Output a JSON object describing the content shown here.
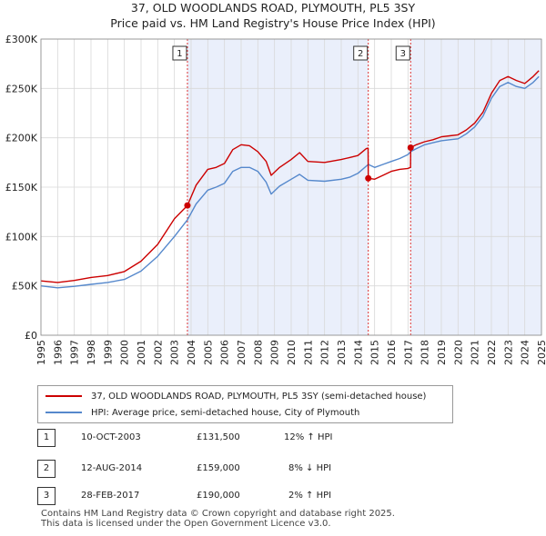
{
  "title_line1": "37, OLD WOODLANDS ROAD, PLYMOUTH, PL5 3SY",
  "title_line2": "Price paid vs. HM Land Registry's House Price Index (HPI)",
  "chart_data": {
    "type": "line",
    "title": "37, OLD WOODLANDS ROAD, PLYMOUTH, PL5 3SY — Price paid vs. HM Land Registry's House Price Index (HPI)",
    "xlim": [
      1995,
      2025
    ],
    "ylim": [
      0,
      300000
    ],
    "y_ticks": [
      0,
      50000,
      100000,
      150000,
      200000,
      250000,
      300000
    ],
    "y_tick_labels": [
      "£0",
      "£50K",
      "£100K",
      "£150K",
      "£200K",
      "£250K",
      "£300K"
    ],
    "x_ticks": [
      1995,
      1996,
      1997,
      1998,
      1999,
      2000,
      2001,
      2002,
      2003,
      2004,
      2005,
      2006,
      2007,
      2008,
      2009,
      2010,
      2011,
      2012,
      2013,
      2014,
      2015,
      2016,
      2017,
      2018,
      2019,
      2020,
      2021,
      2022,
      2023,
      2024,
      2025
    ],
    "x_tick_labels": [
      "1995",
      "1996",
      "1997",
      "1998",
      "1999",
      "2000",
      "2001",
      "2002",
      "2003",
      "2004",
      "2005",
      "2006",
      "2007",
      "2008",
      "2009",
      "2010",
      "2011",
      "2012",
      "2013",
      "2014",
      "2015",
      "2016",
      "2017",
      "2018",
      "2019",
      "2020",
      "2021",
      "2022",
      "2023",
      "2024",
      "2025"
    ],
    "grid": true,
    "series": [
      {
        "name": "37, OLD WOODLANDS ROAD, PLYMOUTH, PL5 3SY (semi-detached house)",
        "color": "#cc0000",
        "points": [
          [
            1995.0,
            55000
          ],
          [
            1996.0,
            53500
          ],
          [
            1997.0,
            55500
          ],
          [
            1998.0,
            58500
          ],
          [
            1999.0,
            60500
          ],
          [
            2000.0,
            64500
          ],
          [
            2001.0,
            75000
          ],
          [
            2002.0,
            92000
          ],
          [
            2003.0,
            118000
          ],
          [
            2003.78,
            131500
          ],
          [
            2004.3,
            152000
          ],
          [
            2005.0,
            168000
          ],
          [
            2005.5,
            170000
          ],
          [
            2006.0,
            174000
          ],
          [
            2006.5,
            188000
          ],
          [
            2007.0,
            193000
          ],
          [
            2007.5,
            192000
          ],
          [
            2008.0,
            186000
          ],
          [
            2008.5,
            176000
          ],
          [
            2008.8,
            162000
          ],
          [
            2009.3,
            170000
          ],
          [
            2010.0,
            178000
          ],
          [
            2010.5,
            185000
          ],
          [
            2011.0,
            176000
          ],
          [
            2012.0,
            175000
          ],
          [
            2013.0,
            178000
          ],
          [
            2013.5,
            180000
          ],
          [
            2014.0,
            182000
          ],
          [
            2014.5,
            189000
          ],
          [
            2014.61,
            189500
          ],
          [
            2014.62,
            159000
          ],
          [
            2015.0,
            158000
          ],
          [
            2015.5,
            162000
          ],
          [
            2016.0,
            166000
          ],
          [
            2016.5,
            168000
          ],
          [
            2017.0,
            169000
          ],
          [
            2017.15,
            170000
          ],
          [
            2017.16,
            190000
          ],
          [
            2017.5,
            193000
          ],
          [
            2018.0,
            196000
          ],
          [
            2018.5,
            198000
          ],
          [
            2019.0,
            201000
          ],
          [
            2019.5,
            202000
          ],
          [
            2020.0,
            203000
          ],
          [
            2020.5,
            208000
          ],
          [
            2021.0,
            215000
          ],
          [
            2021.5,
            226000
          ],
          [
            2022.0,
            245000
          ],
          [
            2022.5,
            258000
          ],
          [
            2023.0,
            262000
          ],
          [
            2023.5,
            258000
          ],
          [
            2024.0,
            255000
          ],
          [
            2024.5,
            262000
          ],
          [
            2024.85,
            268000
          ]
        ]
      },
      {
        "name": "HPI: Average price, semi-detached house, City of Plymouth",
        "color": "#5588cc",
        "points": [
          [
            1995.0,
            50000
          ],
          [
            1996.0,
            48000
          ],
          [
            1997.0,
            49500
          ],
          [
            1998.0,
            51500
          ],
          [
            1999.0,
            53500
          ],
          [
            2000.0,
            56500
          ],
          [
            2001.0,
            65000
          ],
          [
            2002.0,
            80000
          ],
          [
            2003.0,
            100000
          ],
          [
            2003.78,
            117000
          ],
          [
            2004.3,
            133000
          ],
          [
            2005.0,
            147000
          ],
          [
            2005.5,
            150000
          ],
          [
            2006.0,
            154000
          ],
          [
            2006.5,
            166000
          ],
          [
            2007.0,
            170000
          ],
          [
            2007.5,
            170000
          ],
          [
            2008.0,
            166000
          ],
          [
            2008.5,
            155000
          ],
          [
            2008.8,
            143000
          ],
          [
            2009.3,
            151000
          ],
          [
            2010.0,
            158000
          ],
          [
            2010.5,
            163000
          ],
          [
            2011.0,
            157000
          ],
          [
            2012.0,
            156000
          ],
          [
            2013.0,
            158000
          ],
          [
            2013.5,
            160000
          ],
          [
            2014.0,
            164000
          ],
          [
            2014.62,
            173000
          ],
          [
            2015.0,
            170000
          ],
          [
            2015.5,
            173000
          ],
          [
            2016.0,
            176000
          ],
          [
            2016.5,
            179000
          ],
          [
            2017.0,
            183000
          ],
          [
            2017.16,
            186000
          ],
          [
            2017.5,
            189000
          ],
          [
            2018.0,
            193000
          ],
          [
            2018.5,
            195000
          ],
          [
            2019.0,
            197000
          ],
          [
            2019.5,
            198000
          ],
          [
            2020.0,
            199000
          ],
          [
            2020.5,
            204000
          ],
          [
            2021.0,
            211000
          ],
          [
            2021.5,
            222000
          ],
          [
            2022.0,
            240000
          ],
          [
            2022.5,
            252000
          ],
          [
            2023.0,
            256000
          ],
          [
            2023.5,
            252000
          ],
          [
            2024.0,
            250000
          ],
          [
            2024.5,
            256000
          ],
          [
            2024.85,
            262000
          ]
        ]
      }
    ],
    "sales": [
      {
        "label": "1",
        "x": 2003.78,
        "price": 131500
      },
      {
        "label": "2",
        "x": 2014.62,
        "price": 159000
      },
      {
        "label": "3",
        "x": 2017.16,
        "price": 190000
      }
    ],
    "shaded_periods": [
      [
        2003.78,
        2014.62
      ],
      [
        2017.16,
        2025
      ]
    ]
  },
  "legend": {
    "property_label": "37, OLD WOODLANDS ROAD, PLYMOUTH, PL5 3SY (semi-detached house)",
    "property_color": "#cc0000",
    "hpi_label": "HPI: Average price, semi-detached house, City of Plymouth",
    "hpi_color": "#5588cc"
  },
  "sales_table": [
    {
      "num": "1",
      "date": "10-OCT-2003",
      "price": "£131,500",
      "hpi": "12% ↑ HPI"
    },
    {
      "num": "2",
      "date": "12-AUG-2014",
      "price": "£159,000",
      "hpi": "8% ↓ HPI"
    },
    {
      "num": "3",
      "date": "28-FEB-2017",
      "price": "£190,000",
      "hpi": "2% ↑ HPI"
    }
  ],
  "footer": {
    "line1": "Contains HM Land Registry data © Crown copyright and database right 2025.",
    "line2": "This data is licensed under the Open Government Licence v3.0."
  }
}
